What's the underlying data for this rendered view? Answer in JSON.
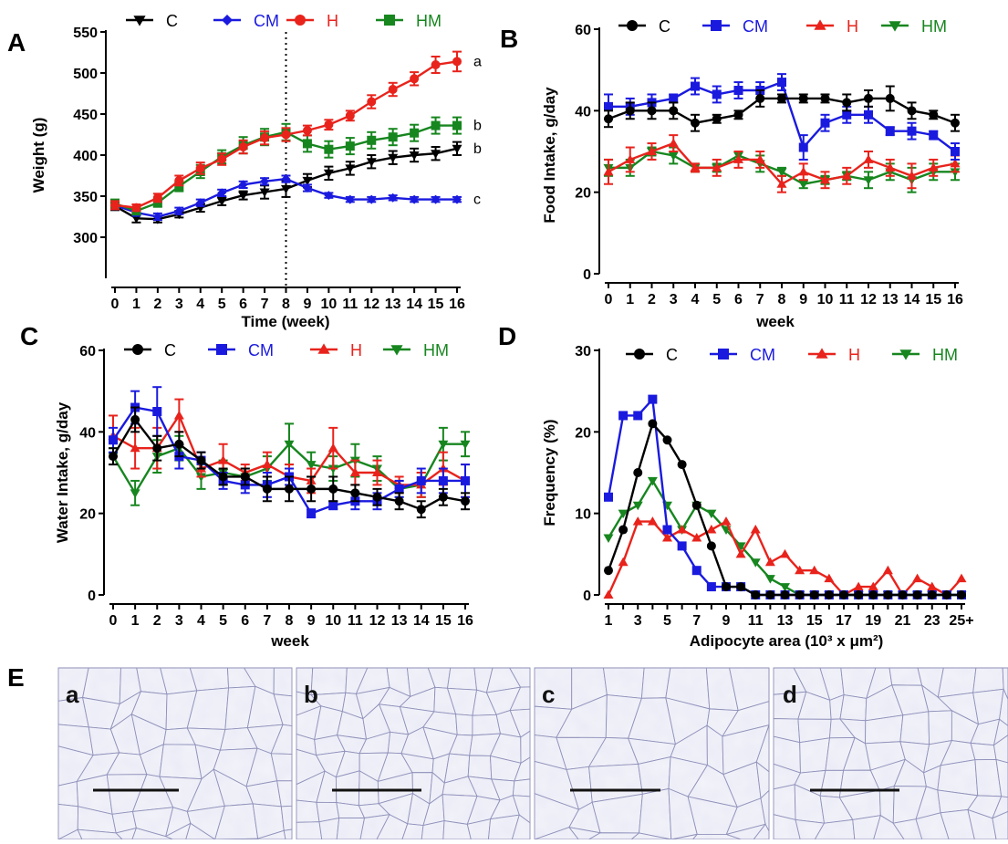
{
  "figure": {
    "panel_labels": [
      "A",
      "B",
      "C",
      "D",
      "E"
    ],
    "micro_labels": [
      "a",
      "b",
      "c",
      "d"
    ]
  },
  "colors": {
    "C": "#000000",
    "CM": "#1a1adf",
    "H": "#e8231c",
    "HM": "#17861f"
  },
  "chart_data": [
    {
      "id": "A",
      "type": "line",
      "title": "",
      "xlabel": "Time (week)",
      "ylabel": "Weight (g)",
      "xlim": [
        0,
        16
      ],
      "ylim": [
        300,
        550
      ],
      "y_axis_min_drawn": 250,
      "yticks": [
        300,
        350,
        400,
        450,
        500,
        550
      ],
      "x": [
        0,
        1,
        2,
        3,
        4,
        5,
        6,
        7,
        8,
        9,
        10,
        11,
        12,
        13,
        14,
        15,
        16
      ],
      "xtick_labels": [
        "0",
        "1",
        "2",
        "3",
        "4",
        "5",
        "6",
        "7",
        "8",
        "9",
        "10",
        "11",
        "12",
        "13",
        "14",
        "15",
        "16"
      ],
      "vline_x": 8,
      "legend_position": "top",
      "series": [
        {
          "name": "C",
          "marker": "tri-down",
          "values": [
            338,
            323,
            322,
            328,
            336,
            344,
            351,
            355,
            359,
            369,
            378,
            384,
            392,
            397,
            400,
            402,
            408
          ],
          "errors": [
            5,
            5,
            4,
            4,
            5,
            5,
            5,
            8,
            10,
            8,
            8,
            8,
            8,
            8,
            8,
            8,
            8
          ]
        },
        {
          "name": "CM",
          "marker": "diamond",
          "values": [
            339,
            330,
            325,
            332,
            342,
            354,
            364,
            368,
            371,
            360,
            351,
            346,
            346,
            348,
            346,
            346,
            346
          ],
          "errors": [
            5,
            4,
            4,
            4,
            4,
            4,
            4,
            4,
            4,
            4,
            3,
            3,
            3,
            3,
            3,
            3,
            3
          ]
        },
        {
          "name": "H",
          "marker": "circle",
          "values": [
            339,
            336,
            348,
            369,
            384,
            395,
            410,
            421,
            425,
            430,
            437,
            448,
            465,
            480,
            493,
            510,
            514
          ],
          "errors": [
            5,
            4,
            5,
            6,
            7,
            7,
            8,
            8,
            8,
            6,
            6,
            6,
            8,
            8,
            8,
            10,
            12
          ]
        },
        {
          "name": "HM",
          "marker": "square",
          "values": [
            341,
            332,
            342,
            362,
            380,
            398,
            412,
            422,
            428,
            414,
            407,
            411,
            418,
            422,
            427,
            436,
            436
          ],
          "errors": [
            5,
            4,
            5,
            6,
            8,
            8,
            10,
            10,
            10,
            10,
            10,
            10,
            10,
            10,
            10,
            10,
            10
          ]
        }
      ],
      "annotations": [
        {
          "series": "H",
          "text": "a"
        },
        {
          "series": "HM",
          "text": "b"
        },
        {
          "series": "C",
          "text": "b"
        },
        {
          "series": "CM",
          "text": "c"
        }
      ]
    },
    {
      "id": "B",
      "type": "line",
      "title": "",
      "xlabel": "week",
      "ylabel": "Food Intake, g/day",
      "xlim": [
        0,
        16
      ],
      "ylim": [
        0,
        60
      ],
      "yticks": [
        0,
        20,
        40,
        60
      ],
      "x": [
        0,
        1,
        2,
        3,
        4,
        5,
        6,
        7,
        8,
        9,
        10,
        11,
        12,
        13,
        14,
        15,
        16
      ],
      "xtick_labels": [
        "0",
        "1",
        "2",
        "3",
        "4",
        "5",
        "6",
        "7",
        "8",
        "9",
        "10",
        "11",
        "12",
        "13",
        "14",
        "15",
        "16"
      ],
      "legend_position": "top",
      "series": [
        {
          "name": "C",
          "marker": "circle",
          "values": [
            38,
            40,
            40,
            40,
            37,
            38,
            39,
            43,
            43,
            43,
            43,
            42,
            43,
            43,
            40,
            39,
            37
          ],
          "errors": [
            2,
            2,
            2,
            2,
            2,
            1,
            1,
            2,
            1,
            1,
            1,
            2,
            2,
            3,
            2,
            1,
            2
          ]
        },
        {
          "name": "CM",
          "marker": "square",
          "values": [
            41,
            41,
            42,
            43,
            46,
            44,
            45,
            45,
            47,
            31,
            37,
            39,
            39,
            35,
            35,
            34,
            30
          ],
          "errors": [
            3,
            2,
            2,
            1,
            2,
            2,
            2,
            2,
            2,
            3,
            2,
            2,
            2,
            1,
            2,
            1,
            2
          ]
        },
        {
          "name": "H",
          "marker": "tri-up",
          "values": [
            25,
            28,
            30,
            32,
            26,
            26,
            28,
            28,
            22,
            25,
            23,
            24,
            28,
            26,
            24,
            26,
            27
          ],
          "errors": [
            3,
            3,
            2,
            2,
            1,
            2,
            2,
            2,
            2,
            2,
            2,
            2,
            2,
            2,
            3,
            2,
            2
          ]
        },
        {
          "name": "HM",
          "marker": "tri-down",
          "values": [
            26,
            26,
            30,
            29,
            26,
            26,
            29,
            27,
            25,
            22,
            23,
            24,
            23,
            25,
            23,
            25,
            25
          ],
          "errors": [
            2,
            2,
            1,
            2,
            1,
            1,
            1,
            2,
            1,
            1,
            1,
            1,
            2,
            2,
            3,
            2,
            2
          ]
        }
      ]
    },
    {
      "id": "C",
      "type": "line",
      "title": "",
      "xlabel": "week",
      "ylabel": "Water Intake, g/day",
      "xlim": [
        0,
        16
      ],
      "ylim": [
        0,
        60
      ],
      "yticks": [
        0,
        20,
        40,
        60
      ],
      "x": [
        0,
        1,
        2,
        3,
        4,
        5,
        6,
        7,
        8,
        9,
        10,
        11,
        12,
        13,
        14,
        15,
        16
      ],
      "xtick_labels": [
        "0",
        "1",
        "2",
        "3",
        "4",
        "5",
        "6",
        "7",
        "8",
        "9",
        "10",
        "11",
        "12",
        "13",
        "14",
        "15",
        "16"
      ],
      "legend_position": "top",
      "series": [
        {
          "name": "C",
          "marker": "circle",
          "values": [
            34,
            43,
            36,
            37,
            33,
            29,
            29,
            26,
            26,
            26,
            26,
            25,
            24,
            23,
            21,
            24,
            23
          ],
          "errors": [
            2,
            3,
            3,
            3,
            2,
            2,
            2,
            3,
            3,
            3,
            3,
            2,
            2,
            2,
            2,
            2,
            2
          ]
        },
        {
          "name": "CM",
          "marker": "square",
          "values": [
            38,
            46,
            45,
            34,
            33,
            28,
            27,
            27,
            29,
            20,
            22,
            23,
            23,
            26,
            28,
            28,
            28
          ],
          "errors": [
            3,
            4,
            6,
            3,
            2,
            2,
            2,
            3,
            2,
            1,
            1,
            2,
            2,
            2,
            3,
            3,
            4
          ]
        },
        {
          "name": "H",
          "marker": "tri-up",
          "values": [
            39,
            36,
            36,
            44,
            31,
            33,
            30,
            32,
            29,
            28,
            36,
            30,
            30,
            27,
            27,
            31,
            28
          ],
          "errors": [
            5,
            5,
            5,
            4,
            2,
            4,
            2,
            3,
            3,
            3,
            5,
            3,
            3,
            2,
            3,
            4,
            4
          ]
        },
        {
          "name": "HM",
          "marker": "tri-down",
          "values": [
            34,
            25,
            34,
            36,
            29,
            30,
            29,
            31,
            37,
            32,
            31,
            33,
            31,
            26,
            27,
            37,
            37
          ],
          "errors": [
            2,
            3,
            4,
            3,
            3,
            3,
            2,
            3,
            5,
            3,
            3,
            4,
            3,
            2,
            3,
            4,
            3
          ]
        }
      ]
    },
    {
      "id": "D",
      "type": "line",
      "title": "",
      "xlabel": "Adipocyte area (10³ x μm²)",
      "ylabel": "Frequency (%)",
      "ylim": [
        0,
        30
      ],
      "yticks": [
        0,
        10,
        20,
        30
      ],
      "x": [
        1,
        2,
        3,
        4,
        5,
        6,
        7,
        8,
        9,
        10,
        11,
        12,
        13,
        14,
        15,
        16,
        17,
        18,
        19,
        20,
        21,
        22,
        23,
        24,
        25
      ],
      "xtick_labels": [
        "1",
        "",
        "3",
        "",
        "5",
        "",
        "7",
        "",
        "9",
        "",
        "11",
        "",
        "13",
        "",
        "15",
        "",
        "17",
        "",
        "19",
        "",
        "21",
        "",
        "23",
        "",
        "25+"
      ],
      "legend_position": "top",
      "series": [
        {
          "name": "C",
          "marker": "circle",
          "values": [
            3,
            8,
            15,
            21,
            19,
            16,
            11,
            6,
            1,
            1,
            0,
            0,
            0,
            0,
            0,
            0,
            0,
            0,
            0,
            0,
            0,
            0,
            0,
            0,
            0
          ]
        },
        {
          "name": "CM",
          "marker": "square",
          "values": [
            12,
            22,
            22,
            24,
            8,
            6,
            3,
            1,
            1,
            1,
            0,
            0,
            0,
            0,
            0,
            0,
            0,
            0,
            0,
            0,
            0,
            0,
            0,
            0,
            0
          ]
        },
        {
          "name": "H",
          "marker": "tri-up",
          "values": [
            0,
            4,
            9,
            9,
            7,
            8,
            7,
            8,
            9,
            5,
            8,
            4,
            5,
            3,
            3,
            2,
            0,
            1,
            1,
            3,
            0,
            2,
            1,
            0,
            2
          ]
        },
        {
          "name": "HM",
          "marker": "tri-down",
          "values": [
            7,
            10,
            11,
            14,
            11,
            8,
            11,
            10,
            8,
            6,
            4,
            2,
            1,
            0,
            0,
            0,
            0,
            0,
            0,
            0,
            0,
            0,
            0,
            0,
            0
          ]
        }
      ]
    }
  ]
}
